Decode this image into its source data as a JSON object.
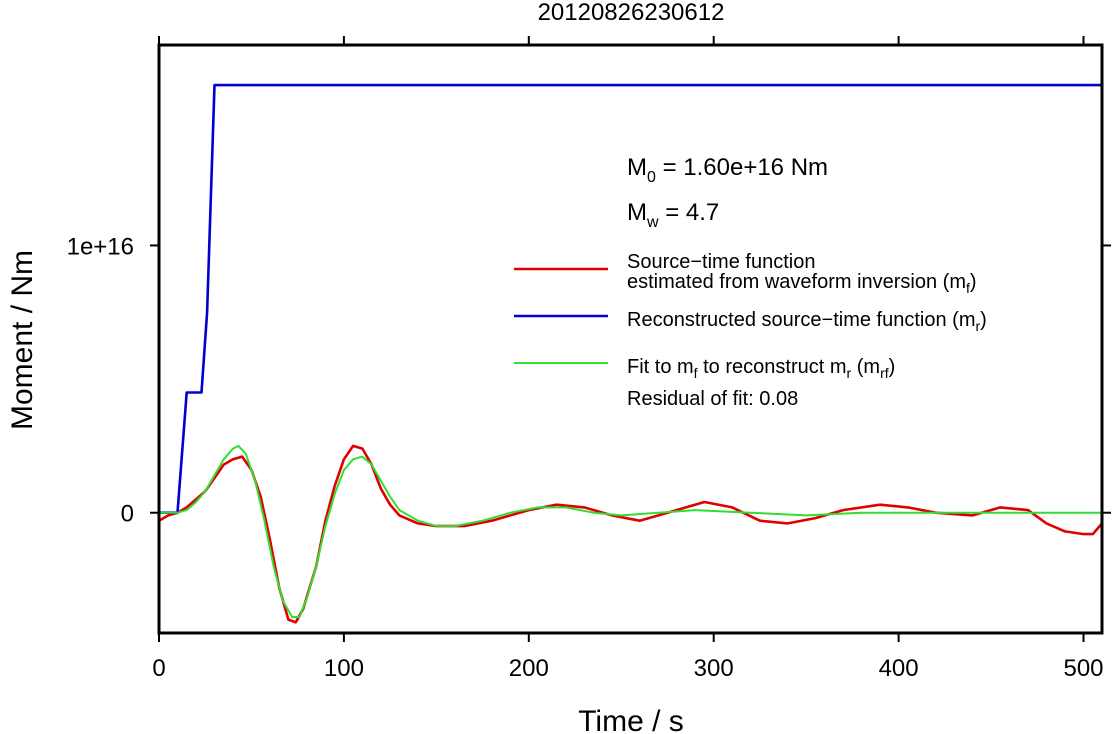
{
  "chart_data": {
    "type": "line",
    "title": "20120826230612",
    "xlabel": "Time / s",
    "ylabel": "Moment / Nm",
    "xlim": [
      0,
      510
    ],
    "ylim": [
      -4500000000000000.0,
      1.75e+16
    ],
    "x_ticks": [
      {
        "value": 0,
        "label": "0"
      },
      {
        "value": 100,
        "label": "100"
      },
      {
        "value": 200,
        "label": "200"
      },
      {
        "value": 300,
        "label": "300"
      },
      {
        "value": 400,
        "label": "400"
      },
      {
        "value": 500,
        "label": "500"
      }
    ],
    "y_ticks": [
      {
        "value": 0,
        "label": "0"
      },
      {
        "value": 1e+16,
        "label": "1e+16"
      }
    ],
    "grid": false,
    "legend_position": "right",
    "annotations": {
      "m0": {
        "prefix": "M",
        "sub": "0",
        "text": " = 1.60e+16 Nm"
      },
      "mw": {
        "prefix": "M",
        "sub": "w",
        "text": " = 4.7"
      },
      "residual": "Residual of fit: 0.08"
    },
    "series": [
      {
        "name": "Source−time function estimated from waveform inversion (m_f)",
        "legend": [
          {
            "text": "Source−time function"
          },
          {
            "text": "estimated from waveform inversion (m",
            "sub": "f",
            "after": ")"
          }
        ],
        "color": "#e00000",
        "width": 2.6,
        "points": [
          [
            0,
            -300000000000000.0
          ],
          [
            5,
            -100000000000000.0
          ],
          [
            10,
            0
          ],
          [
            15,
            200000000000000.0
          ],
          [
            20,
            500000000000000.0
          ],
          [
            25,
            800000000000000.0
          ],
          [
            30,
            1300000000000000.0
          ],
          [
            35,
            1800000000000000.0
          ],
          [
            40,
            2000000000000000.0
          ],
          [
            45,
            2100000000000000.0
          ],
          [
            50,
            1600000000000000.0
          ],
          [
            55,
            600000000000000.0
          ],
          [
            60,
            -1000000000000000.0
          ],
          [
            65,
            -2800000000000000.0
          ],
          [
            70,
            -4000000000000000.0
          ],
          [
            74,
            -4100000000000000.0
          ],
          [
            78,
            -3600000000000000.0
          ],
          [
            85,
            -2000000000000000.0
          ],
          [
            90,
            -300000000000000.0
          ],
          [
            95,
            1000000000000000.0
          ],
          [
            100,
            2000000000000000.0
          ],
          [
            105,
            2500000000000000.0
          ],
          [
            110,
            2400000000000000.0
          ],
          [
            115,
            1800000000000000.0
          ],
          [
            120,
            900000000000000.0
          ],
          [
            125,
            300000000000000.0
          ],
          [
            130,
            -100000000000000.0
          ],
          [
            140,
            -400000000000000.0
          ],
          [
            150,
            -500000000000000.0
          ],
          [
            165,
            -500000000000000.0
          ],
          [
            180,
            -300000000000000.0
          ],
          [
            200,
            100000000000000.0
          ],
          [
            215,
            300000000000000.0
          ],
          [
            230,
            200000000000000.0
          ],
          [
            245,
            -100000000000000.0
          ],
          [
            260,
            -300000000000000.0
          ],
          [
            275,
            0
          ],
          [
            295,
            400000000000000.0
          ],
          [
            310,
            200000000000000.0
          ],
          [
            325,
            -300000000000000.0
          ],
          [
            340,
            -400000000000000.0
          ],
          [
            355,
            -200000000000000.0
          ],
          [
            370,
            100000000000000.0
          ],
          [
            390,
            300000000000000.0
          ],
          [
            405,
            200000000000000.0
          ],
          [
            420,
            0
          ],
          [
            440,
            -100000000000000.0
          ],
          [
            455,
            200000000000000.0
          ],
          [
            470,
            100000000000000.0
          ],
          [
            480,
            -400000000000000.0
          ],
          [
            490,
            -700000000000000.0
          ],
          [
            500,
            -800000000000000.0
          ],
          [
            505,
            -800000000000000.0
          ],
          [
            510,
            -400000000000000.0
          ]
        ]
      },
      {
        "name": "Reconstructed source−time function (m_r)",
        "legend": [
          {
            "text": "Reconstructed source−time function (m",
            "sub": "r",
            "after": ")"
          }
        ],
        "color": "#0000d0",
        "width": 2.6,
        "points": [
          [
            0,
            0
          ],
          [
            10,
            0
          ],
          [
            15,
            4500000000000000.0
          ],
          [
            23,
            4500000000000000.0
          ],
          [
            26,
            7500000000000000.0
          ],
          [
            30,
            1.6e+16
          ],
          [
            510,
            1.6e+16
          ]
        ]
      },
      {
        "name": "Fit to m_f to reconstruct m_r (m_rf)",
        "legend": [
          {
            "text": "Fit to m",
            "sub": "f",
            "after": " to reconstruct m",
            "sub2": "r",
            "after2": " (m",
            "sub3": "rf",
            "after3": ")"
          }
        ],
        "color": "#33dd33",
        "width": 2.0,
        "points": [
          [
            0,
            0
          ],
          [
            10,
            0
          ],
          [
            15,
            100000000000000.0
          ],
          [
            20,
            400000000000000.0
          ],
          [
            25,
            800000000000000.0
          ],
          [
            30,
            1400000000000000.0
          ],
          [
            35,
            2000000000000000.0
          ],
          [
            40,
            2400000000000000.0
          ],
          [
            43,
            2500000000000000.0
          ],
          [
            47,
            2200000000000000.0
          ],
          [
            52,
            1200000000000000.0
          ],
          [
            57,
            -300000000000000.0
          ],
          [
            62,
            -2000000000000000.0
          ],
          [
            67,
            -3300000000000000.0
          ],
          [
            72,
            -3900000000000000.0
          ],
          [
            76,
            -3900000000000000.0
          ],
          [
            80,
            -3200000000000000.0
          ],
          [
            85,
            -2000000000000000.0
          ],
          [
            90,
            -500000000000000.0
          ],
          [
            95,
            700000000000000.0
          ],
          [
            100,
            1600000000000000.0
          ],
          [
            105,
            2000000000000000.0
          ],
          [
            110,
            2100000000000000.0
          ],
          [
            115,
            1800000000000000.0
          ],
          [
            120,
            1200000000000000.0
          ],
          [
            125,
            600000000000000.0
          ],
          [
            130,
            100000000000000.0
          ],
          [
            140,
            -300000000000000.0
          ],
          [
            150,
            -500000000000000.0
          ],
          [
            160,
            -500000000000000.0
          ],
          [
            175,
            -300000000000000.0
          ],
          [
            190,
            0
          ],
          [
            205,
            200000000000000.0
          ],
          [
            220,
            200000000000000.0
          ],
          [
            235,
            0
          ],
          [
            250,
            -100000000000000.0
          ],
          [
            270,
            0
          ],
          [
            290,
            100000000000000.0
          ],
          [
            320,
            0
          ],
          [
            350,
            -100000000000000.0
          ],
          [
            380,
            0
          ],
          [
            420,
            0
          ],
          [
            460,
            0
          ],
          [
            510,
            0
          ]
        ]
      }
    ]
  }
}
